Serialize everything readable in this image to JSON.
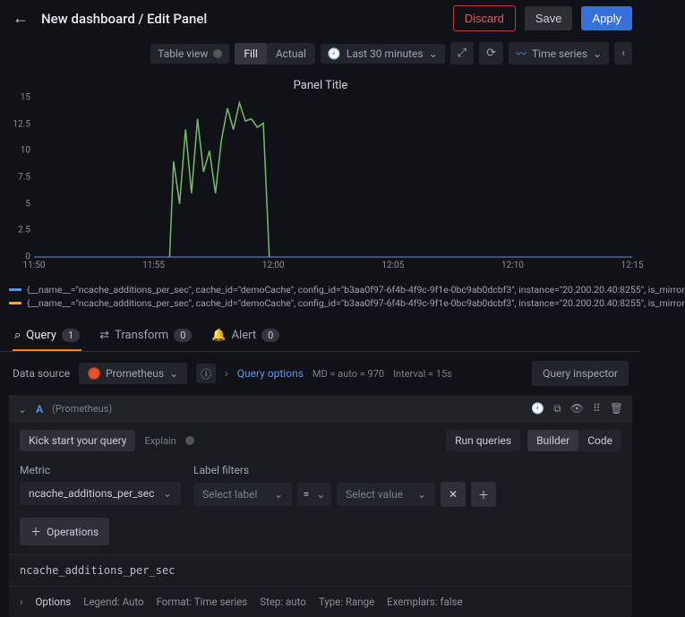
{
  "header": {
    "title": "New dashboard / Edit Panel",
    "discard": "Discard",
    "save": "Save",
    "apply": "Apply"
  },
  "toolbar": {
    "table_view": "Table view",
    "fill": "Fill",
    "actual": "Actual",
    "time_range": "Last 30 minutes",
    "viz_type": "Time series"
  },
  "panel": {
    "title": "Panel Title"
  },
  "chart": {
    "type": "line",
    "ylim": [
      0,
      15
    ],
    "yticks": [
      0,
      2.5,
      5,
      7.5,
      10,
      12.5,
      15
    ],
    "xticks": [
      "11:50",
      "11:55",
      "12:00",
      "12:05",
      "12:10",
      "12:15"
    ],
    "xrange_min": 0,
    "xrange_max": 30,
    "background_color": "#111217",
    "grid_color": "#2a2d33",
    "axis_color": "#8e8e9b",
    "series": [
      {
        "color": "#73bf69",
        "width": 1.5,
        "points": [
          [
            6.8,
            0
          ],
          [
            7.0,
            9
          ],
          [
            7.3,
            5
          ],
          [
            7.6,
            12
          ],
          [
            7.9,
            6
          ],
          [
            8.2,
            13
          ],
          [
            8.5,
            8
          ],
          [
            8.8,
            10
          ],
          [
            9.1,
            6
          ],
          [
            9.4,
            11
          ],
          [
            9.7,
            14
          ],
          [
            10.0,
            12
          ],
          [
            10.3,
            14.5
          ],
          [
            10.6,
            12.8
          ],
          [
            10.9,
            13
          ],
          [
            11.2,
            12.2
          ],
          [
            11.5,
            12.6
          ],
          [
            11.8,
            0
          ]
        ]
      },
      {
        "color": "#5794f2",
        "width": 1,
        "points": [
          [
            0,
            0
          ],
          [
            30,
            0
          ]
        ]
      }
    ]
  },
  "legend": {
    "rows": [
      {
        "color": "#5794f2",
        "text": "{__name__=\"ncache_additions_per_sec\", cache_id=\"demoCache\", config_id=\"b3aa0f97-6f4b-4f9c-9f1e-0bc9ab0dcbf3\", instance=\"20.200.20.40:8255\", is_mirror"
      },
      {
        "color": "#f2a93b",
        "text": "{__name__=\"ncache_additions_per_sec\", cache_id=\"demoCache\", config_id=\"b3aa0f97-6f4b-4f9c-9f1e-0bc9ab0dcbf3\", instance=\"20.200.20.40:8255\", is_mirror"
      }
    ]
  },
  "tabs": {
    "query": "Query",
    "query_count": "1",
    "transform": "Transform",
    "transform_count": "0",
    "alert": "Alert",
    "alert_count": "0"
  },
  "datasource": {
    "label": "Data source",
    "name": "Prometheus",
    "query_options": "Query options",
    "md": "MD = auto = 970",
    "interval": "Interval = 15s",
    "inspector": "Query inspector"
  },
  "query_block": {
    "letter": "A",
    "subtitle": "(Prometheus)",
    "kick": "Kick start your query",
    "explain": "Explain",
    "run": "Run queries",
    "builder": "Builder",
    "code": "Code",
    "metric_label": "Metric",
    "metric_value": "ncache_additions_per_sec",
    "filters_label": "Label filters",
    "select_label": "Select label",
    "eq": "=",
    "select_value": "Select value",
    "operations": "Operations",
    "raw": "ncache_additions_per_sec"
  },
  "options": {
    "label": "Options",
    "legend": "Legend: Auto",
    "format": "Format: Time series",
    "step": "Step: auto",
    "type": "Type: Range",
    "exemplars": "Exemplars: false"
  }
}
